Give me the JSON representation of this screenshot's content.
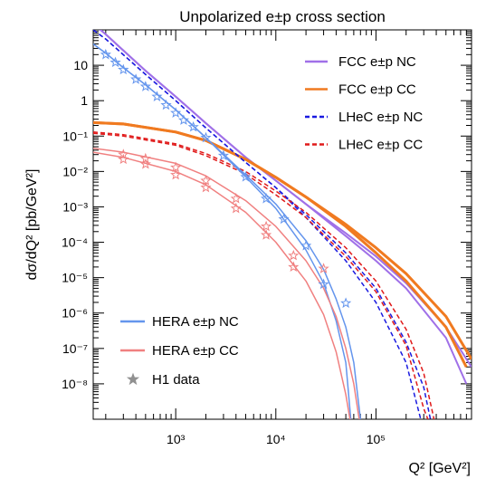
{
  "chart_data": {
    "type": "line",
    "title": "Unpolarized e±p cross section",
    "xlabel": "Q² [GeV²]",
    "ylabel": "dσ/dQ² [pb/GeV²]",
    "x_scale": "log",
    "y_scale": "log",
    "xlim": [
      150,
      900000
    ],
    "ylim": [
      1e-09,
      100
    ],
    "x_ticks": [
      {
        "value": 1000,
        "label": "10³"
      },
      {
        "value": 10000,
        "label": "10⁴"
      },
      {
        "value": 100000,
        "label": "10⁵"
      }
    ],
    "y_ticks": [
      {
        "value": 10,
        "label": "10"
      },
      {
        "value": 1,
        "label": "1"
      },
      {
        "value": 0.1,
        "label": "10⁻¹"
      },
      {
        "value": 0.01,
        "label": "10⁻²"
      },
      {
        "value": 0.001,
        "label": "10⁻³"
      },
      {
        "value": 0.0001,
        "label": "10⁻⁴"
      },
      {
        "value": 1e-05,
        "label": "10⁻⁵"
      },
      {
        "value": 1e-06,
        "label": "10⁻⁶"
      },
      {
        "value": 1e-07,
        "label": "10⁻⁷"
      },
      {
        "value": 1e-08,
        "label": "10⁻⁸"
      }
    ],
    "grid": false,
    "legend_top_right": [
      {
        "label": "FCC  e±p NC",
        "color": "#a070e8",
        "style": "solid"
      },
      {
        "label": "FCC  e±p CC",
        "color": "#f07a20",
        "style": "solid"
      },
      {
        "label": "LHeC e±p NC",
        "color": "#1a1ae0",
        "style": "dashed"
      },
      {
        "label": "LHeC e±p CC",
        "color": "#e01a1a",
        "style": "dashed"
      }
    ],
    "legend_bottom_left": [
      {
        "label": "HERA e±p NC",
        "color": "#6495ed",
        "style": "solid"
      },
      {
        "label": "HERA e±p CC",
        "color": "#f08080",
        "style": "solid"
      },
      {
        "label": "H1 data",
        "color": "#909090",
        "style": "marker"
      }
    ],
    "series": [
      {
        "name": "FCC  e±p NC",
        "color": "#a070e8",
        "dash": false,
        "width": 2,
        "points": [
          [
            150,
            150
          ],
          [
            200,
            75
          ],
          [
            500,
            7
          ],
          [
            1000,
            1.3
          ],
          [
            2000,
            0.23
          ],
          [
            5000,
            0.025
          ],
          [
            10000,
            0.0055
          ],
          [
            20000,
            0.0012
          ],
          [
            50000,
            0.00018
          ],
          [
            100000,
            4e-05
          ],
          [
            200000,
            7e-06
          ],
          [
            500000,
            4e-07
          ],
          [
            900000,
            3e-08
          ]
        ]
      },
      {
        "name": "FCC  e±p NC",
        "color": "#a070e8",
        "dash": false,
        "width": 2,
        "points": [
          [
            150,
            150
          ],
          [
            200,
            75
          ],
          [
            500,
            7
          ],
          [
            1000,
            1.3
          ],
          [
            2000,
            0.23
          ],
          [
            5000,
            0.025
          ],
          [
            10000,
            0.0055
          ],
          [
            20000,
            0.0012
          ],
          [
            50000,
            0.00015
          ],
          [
            100000,
            3e-05
          ],
          [
            200000,
            5e-06
          ],
          [
            500000,
            2e-07
          ],
          [
            800000,
            1e-08
          ]
        ]
      },
      {
        "name": "FCC  e±p CC",
        "color": "#f07a20",
        "dash": false,
        "width": 3,
        "points": [
          [
            150,
            0.24
          ],
          [
            300,
            0.22
          ],
          [
            1000,
            0.13
          ],
          [
            2000,
            0.075
          ],
          [
            5000,
            0.022
          ],
          [
            10000,
            0.0068
          ],
          [
            20000,
            0.0019
          ],
          [
            50000,
            0.00032
          ],
          [
            100000,
            7e-05
          ],
          [
            200000,
            1.3e-05
          ],
          [
            500000,
            8e-07
          ],
          [
            900000,
            5e-08
          ]
        ]
      },
      {
        "name": "FCC  e±p CC",
        "color": "#f07a20",
        "dash": false,
        "width": 3,
        "points": [
          [
            150,
            0.24
          ],
          [
            300,
            0.22
          ],
          [
            1000,
            0.13
          ],
          [
            2000,
            0.075
          ],
          [
            5000,
            0.022
          ],
          [
            10000,
            0.0068
          ],
          [
            20000,
            0.0019
          ],
          [
            50000,
            0.00028
          ],
          [
            100000,
            5e-05
          ],
          [
            200000,
            8e-06
          ],
          [
            500000,
            4e-07
          ],
          [
            800000,
            3e-08
          ]
        ]
      },
      {
        "name": "LHeC e±p NC",
        "color": "#1a1ae0",
        "dash": true,
        "width": 1.5,
        "points": [
          [
            150,
            100
          ],
          [
            200,
            55
          ],
          [
            500,
            5.5
          ],
          [
            1000,
            1
          ],
          [
            2000,
            0.17
          ],
          [
            5000,
            0.018
          ],
          [
            10000,
            0.0035
          ],
          [
            20000,
            0.0006
          ],
          [
            50000,
            5e-05
          ],
          [
            100000,
            5e-06
          ],
          [
            200000,
            1.5e-07
          ],
          [
            300000,
            8e-09
          ],
          [
            350000,
            1e-09
          ]
        ]
      },
      {
        "name": "LHeC e±p NC",
        "color": "#1a1ae0",
        "dash": true,
        "width": 1.5,
        "points": [
          [
            150,
            100
          ],
          [
            200,
            55
          ],
          [
            500,
            5.5
          ],
          [
            1000,
            1
          ],
          [
            2000,
            0.17
          ],
          [
            5000,
            0.018
          ],
          [
            10000,
            0.0035
          ],
          [
            20000,
            0.0005
          ],
          [
            50000,
            3e-05
          ],
          [
            100000,
            2e-06
          ],
          [
            200000,
            4e-08
          ],
          [
            280000,
            1e-09
          ]
        ]
      },
      {
        "name": "LHeC e±p CC",
        "color": "#e01a1a",
        "dash": true,
        "width": 1.5,
        "points": [
          [
            150,
            0.13
          ],
          [
            300,
            0.11
          ],
          [
            1000,
            0.06
          ],
          [
            2000,
            0.032
          ],
          [
            5000,
            0.01
          ],
          [
            10000,
            0.0028
          ],
          [
            20000,
            0.0007
          ],
          [
            50000,
            7e-05
          ],
          [
            100000,
            8e-06
          ],
          [
            200000,
            3.5e-07
          ],
          [
            300000,
            2e-08
          ],
          [
            380000,
            1e-09
          ]
        ]
      },
      {
        "name": "LHeC e±p CC",
        "color": "#e01a1a",
        "dash": true,
        "width": 1.5,
        "points": [
          [
            150,
            0.12
          ],
          [
            300,
            0.1
          ],
          [
            1000,
            0.055
          ],
          [
            2000,
            0.028
          ],
          [
            5000,
            0.0085
          ],
          [
            10000,
            0.0022
          ],
          [
            20000,
            0.0005
          ],
          [
            50000,
            4e-05
          ],
          [
            100000,
            4e-06
          ],
          [
            200000,
            1.2e-07
          ],
          [
            300000,
            2e-09
          ],
          [
            330000,
            1e-09
          ]
        ]
      },
      {
        "name": "HERA e±p NC",
        "color": "#6495ed",
        "dash": false,
        "width": 1.5,
        "points": [
          [
            150,
            40
          ],
          [
            200,
            22
          ],
          [
            300,
            8.5
          ],
          [
            500,
            2.8
          ],
          [
            1000,
            0.55
          ],
          [
            2000,
            0.09
          ],
          [
            5000,
            0.008
          ],
          [
            10000,
            0.0012
          ],
          [
            20000,
            0.00011
          ],
          [
            30000,
            1.7e-05
          ],
          [
            40000,
            2.5e-06
          ],
          [
            50000,
            4e-07
          ],
          [
            60000,
            4e-08
          ],
          [
            70000,
            1e-09
          ]
        ]
      },
      {
        "name": "HERA e±p NC",
        "color": "#6495ed",
        "dash": false,
        "width": 1.5,
        "points": [
          [
            150,
            40
          ],
          [
            200,
            22
          ],
          [
            300,
            8.5
          ],
          [
            500,
            2.8
          ],
          [
            1000,
            0.55
          ],
          [
            2000,
            0.09
          ],
          [
            5000,
            0.007
          ],
          [
            10000,
            0.0009
          ],
          [
            20000,
            6e-05
          ],
          [
            30000,
            7e-06
          ],
          [
            40000,
            6e-07
          ],
          [
            50000,
            4e-08
          ],
          [
            56000,
            1e-09
          ]
        ]
      },
      {
        "name": "HERA e±p CC",
        "color": "#f08080",
        "dash": false,
        "width": 1.5,
        "points": [
          [
            150,
            0.045
          ],
          [
            300,
            0.035
          ],
          [
            1000,
            0.017
          ],
          [
            2000,
            0.0075
          ],
          [
            5000,
            0.0015
          ],
          [
            10000,
            0.00028
          ],
          [
            20000,
            3e-05
          ],
          [
            30000,
            5e-06
          ],
          [
            40000,
            8e-07
          ],
          [
            50000,
            1e-07
          ],
          [
            60000,
            1e-08
          ],
          [
            68000,
            1e-09
          ]
        ]
      },
      {
        "name": "HERA e±p CC",
        "color": "#f08080",
        "dash": false,
        "width": 1.5,
        "points": [
          [
            150,
            0.035
          ],
          [
            300,
            0.025
          ],
          [
            1000,
            0.01
          ],
          [
            2000,
            0.0042
          ],
          [
            5000,
            0.0007
          ],
          [
            10000,
            0.0001
          ],
          [
            20000,
            8e-06
          ],
          [
            30000,
            9e-07
          ],
          [
            40000,
            8e-08
          ],
          [
            50000,
            5e-09
          ],
          [
            55000,
            1e-09
          ]
        ]
      }
    ],
    "h1_data": [
      {
        "name": "H1 NC",
        "color": "#6495ed",
        "points": [
          [
            200,
            20
          ],
          [
            250,
            12
          ],
          [
            300,
            7.5
          ],
          [
            400,
            4
          ],
          [
            500,
            2.5
          ],
          [
            650,
            1.3
          ],
          [
            800,
            0.75
          ],
          [
            1000,
            0.45
          ],
          [
            1200,
            0.28
          ],
          [
            1500,
            0.18
          ],
          [
            2000,
            0.09
          ],
          [
            3000,
            0.028
          ],
          [
            5000,
            0.007
          ],
          [
            8000,
            0.0017
          ],
          [
            12000,
            0.00045
          ],
          [
            20000,
            8e-05
          ],
          [
            30000,
            6.5e-06
          ],
          [
            50000,
            1.9e-06
          ]
        ]
      },
      {
        "name": "H1 CC",
        "color": "#f08080",
        "points": [
          [
            300,
            0.03
          ],
          [
            500,
            0.023
          ],
          [
            1000,
            0.013
          ],
          [
            2000,
            0.0055
          ],
          [
            4000,
            0.0017
          ],
          [
            8000,
            0.00028
          ],
          [
            15000,
            4.2e-05
          ],
          [
            30000,
            1.8e-05
          ]
        ]
      },
      {
        "name": "H1 CC",
        "color": "#f08080",
        "points": [
          [
            300,
            0.022
          ],
          [
            500,
            0.016
          ],
          [
            1000,
            0.008
          ],
          [
            2000,
            0.0035
          ],
          [
            4000,
            0.0009
          ],
          [
            8000,
            0.00016
          ],
          [
            15000,
            2e-05
          ]
        ]
      }
    ]
  }
}
